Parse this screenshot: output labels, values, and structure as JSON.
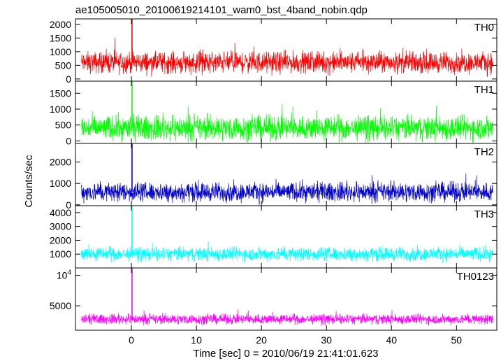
{
  "chart_data": {
    "type": "line",
    "title": "ae105005010_20100619214101_wam0_bst_4band_nobin.qdp",
    "xlabel": "Time [sec] 0 = 2010/06/19 21:41:01.623",
    "ylabel": "Counts/sec",
    "xlim": [
      -8.6,
      56.2
    ],
    "x_ticks": [
      0,
      10,
      20,
      30,
      40,
      50
    ],
    "grid": false,
    "panels": [
      {
        "name": "TH0",
        "color": "#ff0000",
        "ylim": [
          -80,
          2200
        ],
        "y_ticks": [
          0,
          500,
          1000,
          1500,
          2000
        ],
        "y_tick_labels": [
          "0",
          "500",
          "1000",
          "1500",
          "2000"
        ],
        "baseline": 600,
        "noise_amplitude": 330,
        "burst": {
          "time": 0.1,
          "peak": 2200
        }
      },
      {
        "name": "TH1",
        "color": "#00ff00",
        "ylim": [
          -80,
          1880
        ],
        "y_ticks": [
          0,
          500,
          1000,
          1500
        ],
        "y_tick_labels": [
          "0",
          "500",
          "1000",
          "1500"
        ],
        "baseline": 400,
        "noise_amplitude": 330,
        "burst": {
          "time": 0.1,
          "peak": 1880
        }
      },
      {
        "name": "TH2",
        "color": "#0000cc",
        "ylim": [
          -40,
          2870
        ],
        "y_ticks": [
          0,
          1000,
          2000
        ],
        "y_tick_labels": [
          "0",
          "1000",
          "2000"
        ],
        "baseline": 600,
        "noise_amplitude": 380,
        "burst": {
          "time": 0.1,
          "peak": 2870
        }
      },
      {
        "name": "TH3",
        "color": "#00ffff",
        "ylim": [
          0,
          4500
        ],
        "y_ticks": [
          1000,
          2000,
          3000,
          4000
        ],
        "y_tick_labels": [
          "1000",
          "2000",
          "3000",
          "4000"
        ],
        "baseline": 1000,
        "noise_amplitude": 430,
        "burst": {
          "time": 0.1,
          "peak": 4500
        }
      },
      {
        "name": "TH0123",
        "color": "#ff00ff",
        "ylim": [
          1000,
          11200
        ],
        "y_ticks": [
          5000,
          10000
        ],
        "y_tick_labels": [
          "5000",
          "10^4"
        ],
        "baseline": 2800,
        "noise_amplitude": 700,
        "burst": {
          "time": 0.1,
          "peak": 11200
        }
      }
    ]
  }
}
